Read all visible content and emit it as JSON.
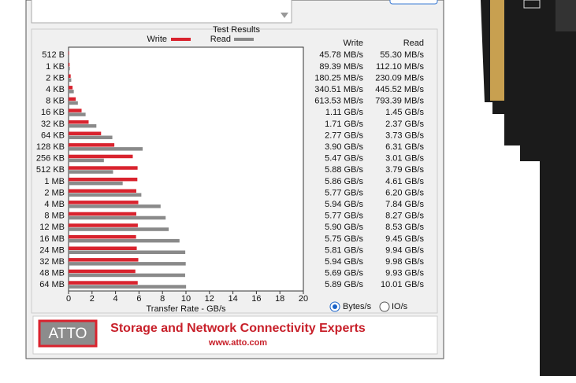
{
  "chart_data": {
    "type": "hbar",
    "title": "Test Results",
    "x_label": "Transfer Rate - GB/s",
    "categories": [
      "512 B",
      "1 KB",
      "2 KB",
      "4 KB",
      "8 KB",
      "16 KB",
      "32 KB",
      "64 KB",
      "128 KB",
      "256 KB",
      "512 KB",
      "1 MB",
      "2 MB",
      "4 MB",
      "8 MB",
      "12 MB",
      "16 MB",
      "24 MB",
      "32 MB",
      "48 MB",
      "64 MB"
    ],
    "series": [
      {
        "name": "Write",
        "color": "#d9232e",
        "values": [
          0.04578,
          0.08939,
          0.18025,
          0.34051,
          0.61353,
          1.11,
          1.71,
          2.77,
          3.9,
          5.47,
          5.88,
          5.86,
          5.77,
          5.94,
          5.77,
          5.9,
          5.75,
          5.81,
          5.94,
          5.69,
          5.89
        ],
        "value_labels": [
          "45.78 MB/s",
          "89.39 MB/s",
          "180.25 MB/s",
          "340.51 MB/s",
          "613.53 MB/s",
          "1.11 GB/s",
          "1.71 GB/s",
          "2.77 GB/s",
          "3.90 GB/s",
          "5.47 GB/s",
          "5.88 GB/s",
          "5.86 GB/s",
          "5.77 GB/s",
          "5.94 GB/s",
          "5.77 GB/s",
          "5.90 GB/s",
          "5.75 GB/s",
          "5.81 GB/s",
          "5.94 GB/s",
          "5.69 GB/s",
          "5.89 GB/s"
        ]
      },
      {
        "name": "Read",
        "color": "#8a8a8a",
        "values": [
          0.0553,
          0.1121,
          0.23009,
          0.44552,
          0.79339,
          1.45,
          2.37,
          3.73,
          6.31,
          3.01,
          3.79,
          4.61,
          6.2,
          7.84,
          8.27,
          8.53,
          9.45,
          9.94,
          9.98,
          9.93,
          10.01
        ],
        "value_labels": [
          "55.30 MB/s",
          "112.10 MB/s",
          "230.09 MB/s",
          "445.52 MB/s",
          "793.39 MB/s",
          "1.45 GB/s",
          "2.37 GB/s",
          "3.73 GB/s",
          "6.31 GB/s",
          "3.01 GB/s",
          "3.79 GB/s",
          "4.61 GB/s",
          "6.20 GB/s",
          "7.84 GB/s",
          "8.27 GB/s",
          "8.53 GB/s",
          "9.45 GB/s",
          "9.94 GB/s",
          "9.98 GB/s",
          "9.93 GB/s",
          "10.01 GB/s"
        ]
      }
    ],
    "xlim": [
      0,
      20
    ],
    "xticks": [
      0,
      2,
      4,
      6,
      8,
      10,
      12,
      14,
      16,
      18,
      20
    ]
  },
  "options": {
    "bytes": "Bytes/s",
    "io": "IO/s"
  },
  "banner": {
    "logo": "ATTO",
    "tagline": "Storage and Network Connectivity Experts",
    "url": "www.atto.com"
  }
}
